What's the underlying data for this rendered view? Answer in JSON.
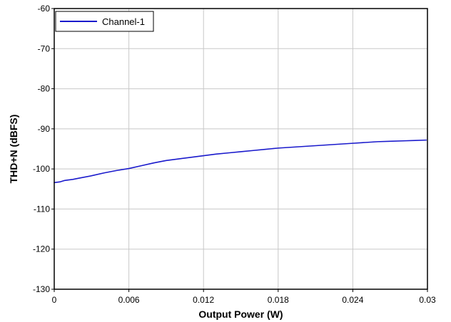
{
  "chart_data": {
    "type": "line",
    "xlabel": "Output Power (W)",
    "ylabel": "THD+N (dBFS)",
    "xlim": [
      0,
      0.03
    ],
    "ylim": [
      -130,
      -60
    ],
    "x_ticks": [
      "0",
      "0.006",
      "0.012",
      "0.018",
      "0.024",
      "0.03"
    ],
    "y_ticks": [
      "-60",
      "-70",
      "-80",
      "-90",
      "-100",
      "-110",
      "-120",
      "-130"
    ],
    "grid": true,
    "legend_position": "top-left",
    "series": [
      {
        "name": "Channel-1",
        "color": "#1a1acc",
        "x": [
          0,
          0.0005,
          0.0008,
          0.001,
          0.0015,
          0.002,
          0.003,
          0.004,
          0.005,
          0.006,
          0.007,
          0.008,
          0.009,
          0.01,
          0.011,
          0.012,
          0.013,
          0.014,
          0.015,
          0.016,
          0.017,
          0.018,
          0.019,
          0.02,
          0.021,
          0.022,
          0.023,
          0.024,
          0.025,
          0.026,
          0.027,
          0.028,
          0.029,
          0.0299
        ],
        "y": [
          -103.4,
          -103.2,
          -102.9,
          -102.8,
          -102.6,
          -102.3,
          -101.7,
          -101.0,
          -100.4,
          -99.9,
          -99.2,
          -98.5,
          -97.9,
          -97.5,
          -97.1,
          -96.7,
          -96.3,
          -96.0,
          -95.7,
          -95.4,
          -95.1,
          -94.8,
          -94.6,
          -94.4,
          -94.2,
          -94.0,
          -93.8,
          -93.6,
          -93.4,
          -93.2,
          -93.1,
          -93.0,
          -92.9,
          -92.8
        ]
      }
    ]
  }
}
